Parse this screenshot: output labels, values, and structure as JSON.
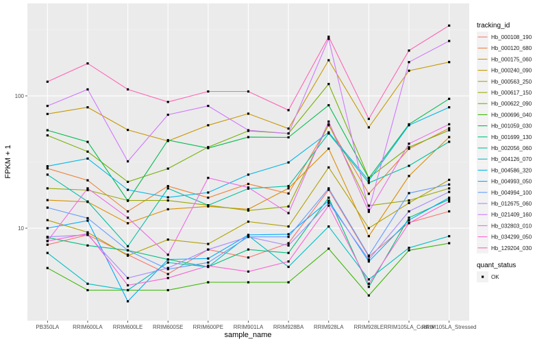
{
  "chart_data": {
    "type": "line",
    "xlabel": "sample_name",
    "ylabel": "FPKM + 1",
    "y_scale": "log10",
    "ylim": [
      2,
      500
    ],
    "y_ticks": [
      10,
      100
    ],
    "grid": true,
    "legend_position": "right",
    "categories": [
      "PB350LA",
      "RRIM600LA",
      "RRIM600LE",
      "RRIM600SE",
      "RRIM600PE",
      "RRIM901LA",
      "RRIM928BA",
      "RRIM928LA",
      "RRIM928LE",
      "RRIM105LA_Control",
      "RRIM105LA_Stressed"
    ],
    "legend_title": "tracking_id",
    "shape_legend_title": "quant_status",
    "shape_legend_items": [
      "OK"
    ],
    "series": [
      {
        "name": "Hb_000108_190",
        "color": "#F8766D",
        "values": [
          7.5,
          8.9,
          6.3,
          4.5,
          6.9,
          6.0,
          7.7,
          19.5,
          6.1,
          11.0,
          13.4
        ]
      },
      {
        "name": "Hb_000120_680",
        "color": "#EC8239",
        "values": [
          28.3,
          23.0,
          13.4,
          20.8,
          17.0,
          21.6,
          18.3,
          60.0,
          18.2,
          39.8,
          57.0
        ]
      },
      {
        "name": "Hb_000175_060",
        "color": "#DB8E00",
        "values": [
          16.3,
          15.8,
          10.9,
          13.9,
          14.6,
          13.9,
          20.0,
          39.9,
          8.7,
          24.8,
          48.8
        ]
      },
      {
        "name": "Hb_000240_090",
        "color": "#C79800",
        "values": [
          73.0,
          82.0,
          55.3,
          45.6,
          60.0,
          73.4,
          56.6,
          186.0,
          57.8,
          155.0,
          180.0
        ]
      },
      {
        "name": "Hb_000563_250",
        "color": "#AFA100",
        "values": [
          11.5,
          9.3,
          6.2,
          8.2,
          7.6,
          11.2,
          10.3,
          28.8,
          10.0,
          15.5,
          23.2
        ]
      },
      {
        "name": "Hb_000617_150",
        "color": "#96A900",
        "values": [
          20.0,
          19.4,
          16.2,
          16.2,
          14.9,
          13.6,
          14.6,
          61.0,
          14.8,
          16.2,
          20.0
        ]
      },
      {
        "name": "Hb_000622_090",
        "color": "#72B000",
        "values": [
          50.3,
          37.9,
          22.4,
          28.2,
          41.0,
          54.4,
          52.0,
          123.0,
          24.0,
          40.9,
          55.0
        ]
      },
      {
        "name": "Hb_000696_040",
        "color": "#39B600",
        "values": [
          5.0,
          3.4,
          3.4,
          3.4,
          3.9,
          3.9,
          3.9,
          7.0,
          3.1,
          6.8,
          7.7
        ]
      },
      {
        "name": "Hb_001059_030",
        "color": "#00BB4E",
        "values": [
          55.0,
          44.9,
          16.1,
          46.3,
          40.3,
          48.8,
          48.6,
          85.0,
          23.9,
          61.0,
          95.0
        ]
      },
      {
        "name": "Hb_001699_130",
        "color": "#00BF7D",
        "values": [
          8.5,
          7.4,
          6.8,
          5.8,
          5.1,
          6.9,
          6.5,
          17.0,
          3.6,
          12.0,
          16.5
        ]
      },
      {
        "name": "Hb_002056_060",
        "color": "#00C1A3",
        "values": [
          25.4,
          15.9,
          7.3,
          20.0,
          14.9,
          19.9,
          20.8,
          52.0,
          22.0,
          29.6,
          45.0
        ]
      },
      {
        "name": "Hb_004126_070",
        "color": "#00BFC4",
        "values": [
          6.5,
          3.8,
          3.4,
          5.5,
          5.1,
          8.8,
          5.1,
          10.3,
          4.1,
          7.1,
          8.7
        ]
      },
      {
        "name": "Hb_004586_320",
        "color": "#00B7E8",
        "values": [
          29.4,
          33.6,
          19.5,
          17.1,
          18.6,
          25.4,
          31.4,
          53.0,
          22.9,
          60.0,
          82.0
        ]
      },
      {
        "name": "Hb_004993_050",
        "color": "#00ABFD",
        "values": [
          10.0,
          11.4,
          2.8,
          5.8,
          5.9,
          8.9,
          9.0,
          16.1,
          5.6,
          11.5,
          17.0
        ]
      },
      {
        "name": "Hb_004994_100",
        "color": "#619CFF",
        "values": [
          14.3,
          11.9,
          6.8,
          4.9,
          5.5,
          8.6,
          8.6,
          20.0,
          6.2,
          18.4,
          21.4
        ]
      },
      {
        "name": "Hb_012675_060",
        "color": "#A58AFF",
        "values": [
          8.6,
          8.9,
          4.2,
          5.0,
          6.9,
          8.6,
          7.4,
          15.5,
          5.8,
          13.4,
          18.8
        ]
      },
      {
        "name": "Hb_021409_160",
        "color": "#D078FF",
        "values": [
          84.0,
          112.0,
          32.0,
          72.0,
          84.0,
          55.0,
          52.0,
          270.0,
          13.7,
          180.0,
          260.0
        ]
      },
      {
        "name": "Hb_032803_010",
        "color": "#EE6AE6",
        "values": [
          8.0,
          20.0,
          12.0,
          6.3,
          24.0,
          20.3,
          13.0,
          64.0,
          13.3,
          43.5,
          61.0
        ]
      },
      {
        "name": "Hb_034299_050",
        "color": "#FB61D7",
        "values": [
          8.0,
          9.1,
          3.7,
          4.2,
          5.2,
          4.7,
          5.6,
          14.8,
          3.8,
          10.9,
          15.9
        ]
      },
      {
        "name": "Hb_129204_030",
        "color": "#FF63B6",
        "values": [
          128.0,
          176.0,
          112.0,
          90.0,
          108.0,
          108.0,
          78.0,
          280.0,
          67.0,
          220.0,
          340.0
        ]
      }
    ]
  }
}
